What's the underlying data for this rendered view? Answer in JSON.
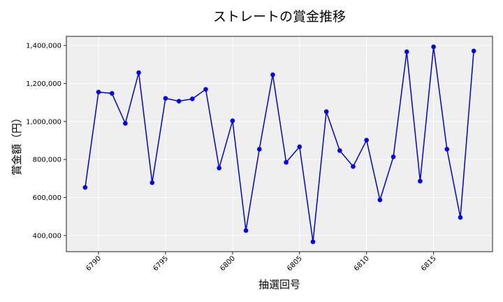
{
  "chart_data": {
    "type": "line",
    "title": "ストレートの賞金推移",
    "xlabel": "抽選回号",
    "ylabel": "賞金額（円）",
    "x": [
      6789,
      6790,
      6791,
      6792,
      6793,
      6794,
      6795,
      6796,
      6797,
      6798,
      6799,
      6800,
      6801,
      6802,
      6803,
      6804,
      6805,
      6806,
      6807,
      6808,
      6809,
      6810,
      6811,
      6812,
      6813,
      6814,
      6815,
      6816,
      6817,
      6818
    ],
    "series": [
      {
        "name": "ストレート",
        "color": "#0000dd",
        "values": [
          653000,
          1155000,
          1148000,
          990000,
          1257000,
          678000,
          1122000,
          1107000,
          1119000,
          1169000,
          755000,
          1004000,
          426000,
          854000,
          1246000,
          785000,
          867000,
          367000,
          1052000,
          847000,
          763000,
          902000,
          587000,
          814000,
          1367000,
          686000,
          1393000,
          854000,
          495000,
          1371000
        ]
      }
    ],
    "xticks": [
      6790,
      6795,
      6800,
      6805,
      6810,
      6815
    ],
    "xtick_labels": [
      "6790",
      "6795",
      "6800",
      "6805",
      "6810",
      "6815"
    ],
    "yticks": [
      400000,
      600000,
      800000,
      1000000,
      1200000,
      1400000
    ],
    "ytick_labels": [
      "400,000",
      "600,000",
      "800,000",
      "1,000,000",
      "1,200,000",
      "1,400,000"
    ],
    "xlim": [
      6787.6,
      6819.4
    ],
    "ylim": [
      315000,
      1448000
    ],
    "grid": true,
    "legend": null,
    "colors": {
      "plot_bg": "#efefef",
      "grid": "#ffffff",
      "line": "#0000dd",
      "marker": "#0000ee"
    }
  }
}
